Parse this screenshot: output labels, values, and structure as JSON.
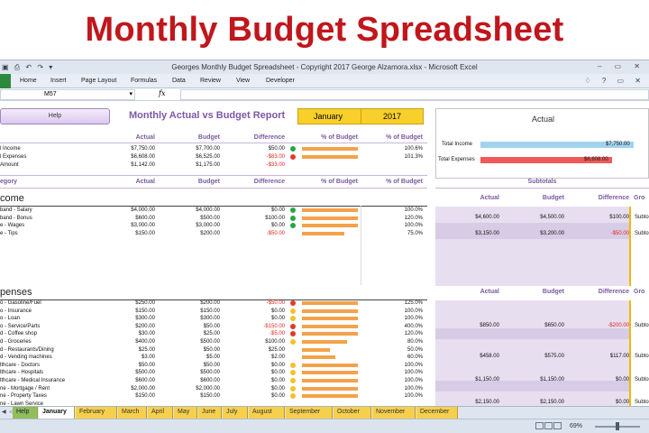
{
  "banner": {
    "title": "Monthly Budget Spreadsheet"
  },
  "window": {
    "title": "Georges Monthly Budget Spreadsheet - Copyright 2017 George Alzamora.xlsx  -  Microsoft Excel",
    "controls": "– ▭ ✕"
  },
  "ribbon": {
    "tabs": [
      "Home",
      "Insert",
      "Page Layout",
      "Formulas",
      "Data",
      "Review",
      "View",
      "Developer"
    ]
  },
  "formula_bar": {
    "cell_ref": "M57",
    "fx": "fx",
    "value": ""
  },
  "report": {
    "help_label": "Help",
    "title": "Monthly Actual vs Budget Report",
    "month": "January",
    "year": "2017"
  },
  "summary": {
    "headers": [
      "Actual",
      "Budget",
      "Difference",
      "% of Budget",
      "% of Budget"
    ],
    "rows": [
      {
        "label": "l Income",
        "actual": "$7,750.00",
        "budget": "$7,700.00",
        "diff": "$50.00",
        "pct": "100.6%",
        "pct_value": 100.6,
        "status": "green"
      },
      {
        "label": "l Expenses",
        "actual": "$6,608.00",
        "budget": "$6,525.00",
        "diff": "-$83.00",
        "pct": "101.3%",
        "pct_value": 101.3,
        "status": "red"
      },
      {
        "label": "Amount",
        "actual": "$1,142.00",
        "budget": "$1,175.00",
        "diff": "-$33.00",
        "pct": "",
        "pct_value": null,
        "status": ""
      }
    ]
  },
  "actual_chart": {
    "title": "Actual",
    "bars": [
      {
        "label": "Total Income",
        "value": "$7,750.00",
        "color": "#9fd4ee"
      },
      {
        "label": "Total Expenses",
        "value": "$6,608.00",
        "color": "#ee5a5a"
      }
    ]
  },
  "table_headers": {
    "category": "egory",
    "actual": "Actual",
    "budget": "Budget",
    "difference": "Difference",
    "pct1": "% of Budget",
    "pct2": "% of Budget",
    "subtotals": "Subtotals",
    "sub_actual": "Actual",
    "sub_budget": "Budget",
    "sub_diff": "Difference",
    "sub_group": "Gro"
  },
  "income": {
    "section": "come",
    "rows": [
      {
        "label": "band - Salary",
        "actual": "$4,000.00",
        "budget": "$4,000.00",
        "diff": "$0.00",
        "pct": "100.0%",
        "status": "green"
      },
      {
        "label": "band - Bonus",
        "actual": "$600.00",
        "budget": "$500.00",
        "diff": "$100.00",
        "pct": "120.0%",
        "status": "green"
      },
      {
        "label": "e - Wages",
        "actual": "$3,000.00",
        "budget": "$3,000.00",
        "diff": "$0.00",
        "pct": "100.0%",
        "status": "green"
      },
      {
        "label": "e - Tips",
        "actual": "$150.00",
        "budget": "$200.00",
        "diff": "-$50.00",
        "pct": "75.0%",
        "status": ""
      }
    ],
    "subtotals": [
      {
        "actual": "$4,600.00",
        "budget": "$4,500.00",
        "diff": "$100.00",
        "label": "Subto"
      },
      {
        "actual": "$3,150.00",
        "budget": "$3,200.00",
        "diff": "-$50.00",
        "label": "Subto"
      }
    ]
  },
  "expenses": {
    "section": "penses",
    "headers": {
      "actual": "Actual",
      "budget": "Budget",
      "difference": "Difference",
      "group": "Gro"
    },
    "rows": [
      {
        "label": "o - Gasoline/Fuel",
        "actual": "$250.00",
        "budget": "$200.00",
        "diff": "-$50.00",
        "pct": "125.0%",
        "status": "red"
      },
      {
        "label": "o - Insurance",
        "actual": "$150.00",
        "budget": "$150.00",
        "diff": "$0.00",
        "pct": "100.0%",
        "status": "yellow"
      },
      {
        "label": "o - Loan",
        "actual": "$300.00",
        "budget": "$300.00",
        "diff": "$0.00",
        "pct": "100.0%",
        "status": "yellow"
      },
      {
        "label": "o - Service/Parts",
        "actual": "$200.00",
        "budget": "$50.00",
        "diff": "-$150.00",
        "pct": "400.0%",
        "status": "red"
      },
      {
        "label": "d - Coffee shop",
        "actual": "$30.00",
        "budget": "$25.00",
        "diff": "-$5.00",
        "pct": "120.0%",
        "status": "red"
      },
      {
        "label": "d - Groceries",
        "actual": "$400.00",
        "budget": "$500.00",
        "diff": "$100.00",
        "pct": "80.0%",
        "status": "yellow"
      },
      {
        "label": "d - Restaurants/Dining",
        "actual": "$25.00",
        "budget": "$50.00",
        "diff": "$25.00",
        "pct": "50.0%",
        "status": ""
      },
      {
        "label": "d - Vending machines",
        "actual": "$3.00",
        "budget": "$5.00",
        "diff": "$2.00",
        "pct": "60.0%",
        "status": ""
      },
      {
        "label": "lthcare - Doctors",
        "actual": "$50.00",
        "budget": "$50.00",
        "diff": "$0.00",
        "pct": "100.0%",
        "status": "yellow"
      },
      {
        "label": "lthcare - Hospitals",
        "actual": "$500.00",
        "budget": "$500.00",
        "diff": "$0.00",
        "pct": "100.0%",
        "status": "yellow"
      },
      {
        "label": "lthcare - Medical Insurance",
        "actual": "$600.00",
        "budget": "$600.00",
        "diff": "$0.00",
        "pct": "100.0%",
        "status": "yellow"
      },
      {
        "label": "ne - Mortgage / Rent",
        "actual": "$2,000.00",
        "budget": "$2,000.00",
        "diff": "$0.00",
        "pct": "100.0%",
        "status": "yellow"
      },
      {
        "label": "ne - Property Taxes",
        "actual": "$150.00",
        "budget": "$150.00",
        "diff": "$0.00",
        "pct": "100.0%",
        "status": "yellow"
      },
      {
        "label": "ne - Lawn Service",
        "actual": "",
        "budget": "",
        "diff": "",
        "pct": "",
        "status": ""
      }
    ],
    "subtotals": [
      {
        "actual": "$850.00",
        "budget": "$650.00",
        "diff": "-$200.00",
        "label": "Subto"
      },
      {
        "actual": "$458.00",
        "budget": "$575.00",
        "diff": "$117.00",
        "label": "Subto"
      },
      {
        "actual": "$1,150.00",
        "budget": "$1,150.00",
        "diff": "$0.00",
        "label": "Subto"
      },
      {
        "actual": "$2,150.00",
        "budget": "$2,150.00",
        "diff": "$0.00",
        "label": "Subto"
      }
    ]
  },
  "sheet_tabs": [
    "Help",
    "January",
    "February",
    "March",
    "April",
    "May",
    "June",
    "July",
    "August",
    "September",
    "October",
    "November",
    "December"
  ],
  "active_tab": "January",
  "status_bar": {
    "zoom": "69%"
  },
  "colors": {
    "accent": "#7e57a8",
    "banner_red": "#c0161c",
    "bar_orange": "#f3a24a",
    "gold": "#f8cf2b"
  }
}
